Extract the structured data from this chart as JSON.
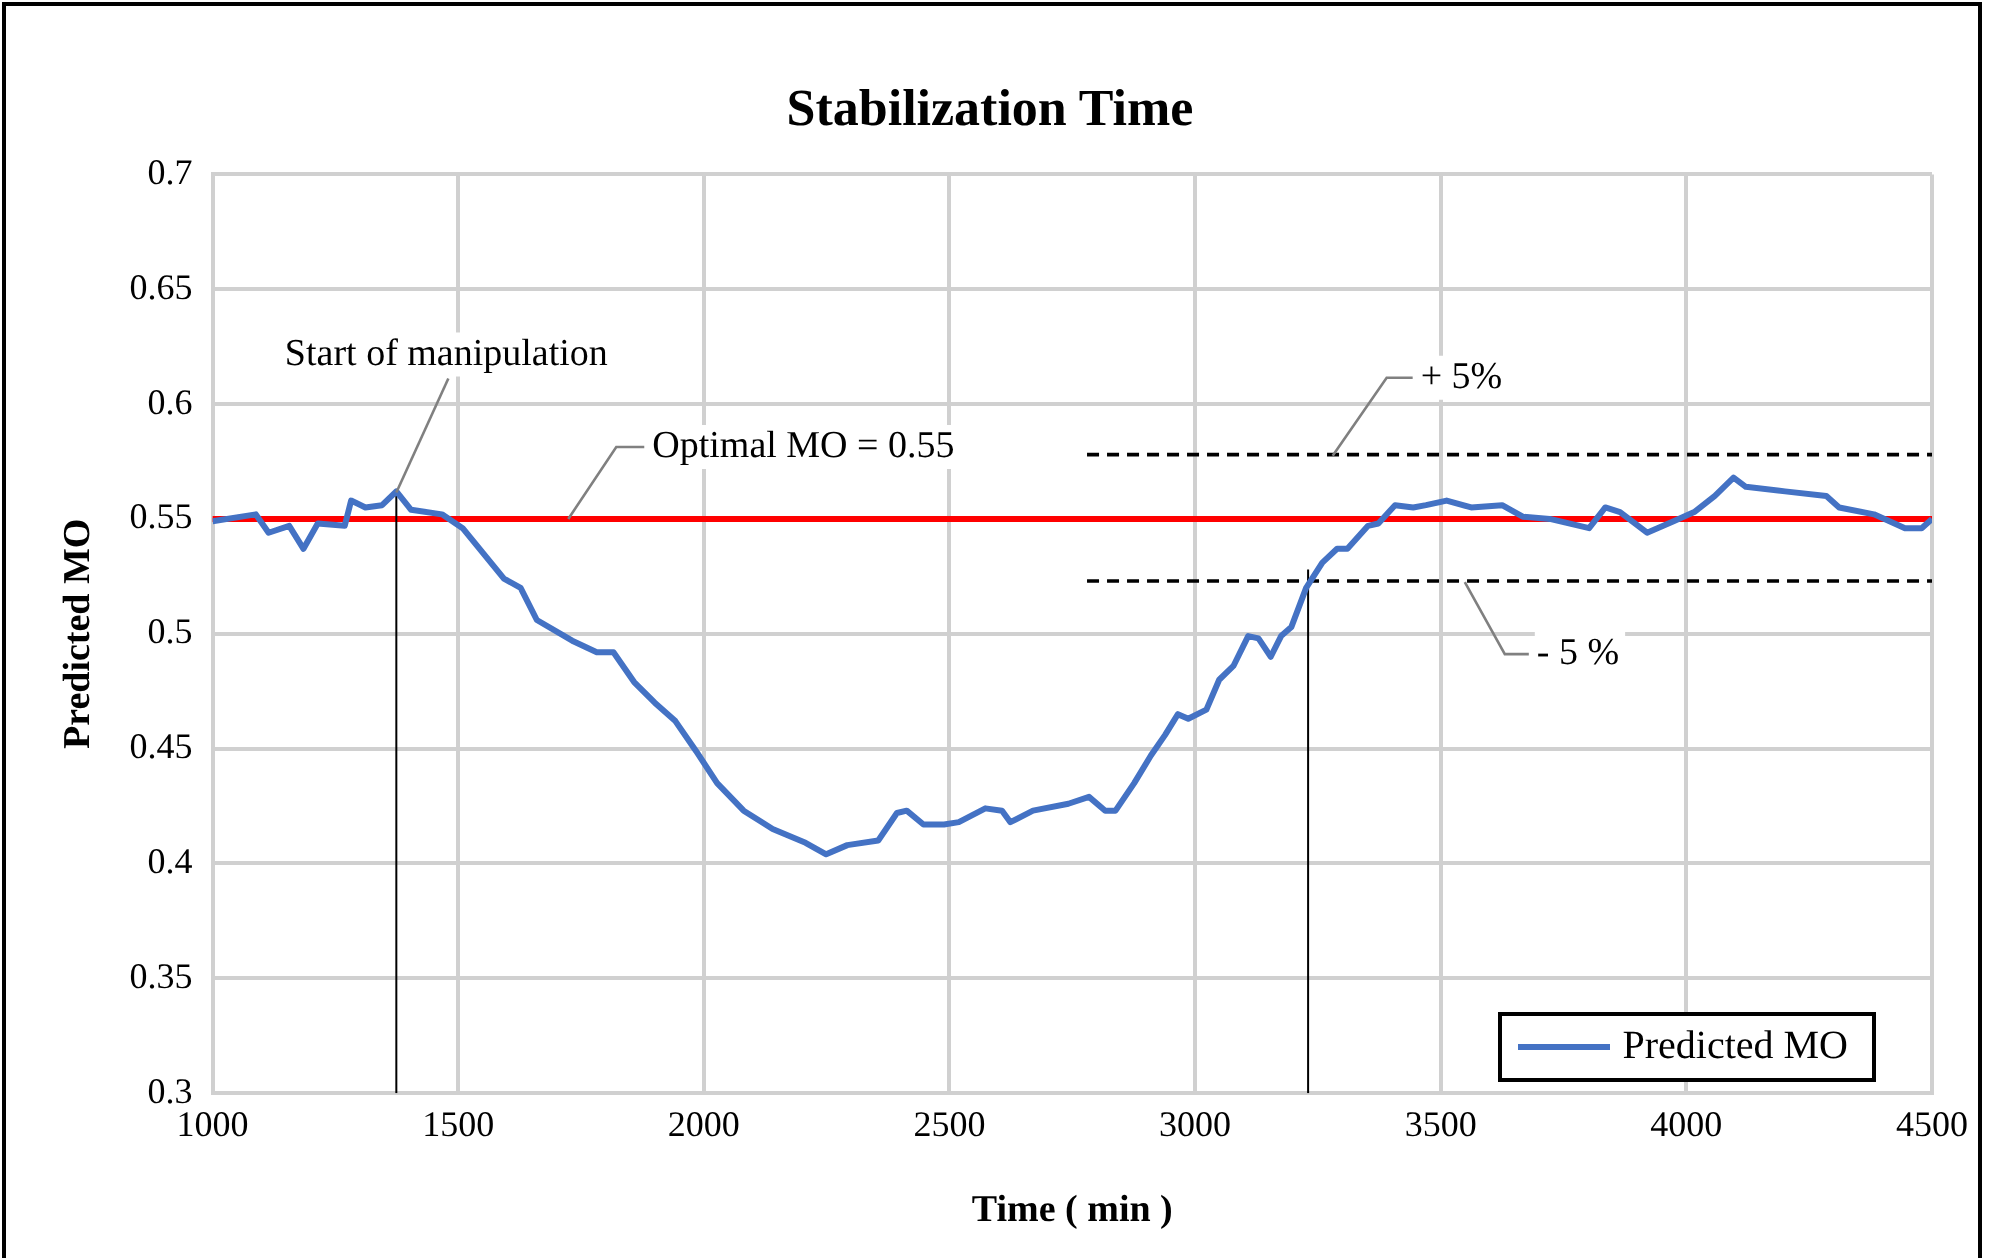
{
  "chart_data": {
    "type": "line",
    "title": "Stabilization Time",
    "xlabel": "Time ( min )",
    "ylabel": "Predicted MO",
    "xlim": [
      1000,
      4500
    ],
    "xticks": [
      1000,
      1500,
      2000,
      2500,
      3000,
      3500,
      4000,
      4500
    ],
    "ylim": [
      0.3,
      0.7
    ],
    "yticks": [
      0.3,
      0.35,
      0.4,
      0.45,
      0.5,
      0.55,
      0.6,
      0.65,
      0.7
    ],
    "grid": true,
    "legend": "bottom right",
    "marker": "none",
    "series": [
      {
        "name": "Predicted MO",
        "type": "line",
        "color": "#4472c4",
        "line_style": "solid",
        "x": [
          1000,
          1088,
          1114,
          1156,
          1185,
          1214,
          1269,
          1282,
          1311,
          1345,
          1374,
          1404,
          1467,
          1509,
          1593,
          1627,
          1660,
          1732,
          1782,
          1816,
          1858,
          1900,
          1942,
          1984,
          2027,
          2081,
          2140,
          2207,
          2249,
          2292,
          2355,
          2393,
          2413,
          2447,
          2489,
          2519,
          2573,
          2607,
          2624,
          2670,
          2742,
          2784,
          2817,
          2838,
          2876,
          2910,
          2939,
          2965,
          2986,
          3023,
          3049,
          3078,
          3108,
          3129,
          3154,
          3175,
          3196,
          3226,
          3259,
          3289,
          3310,
          3352,
          3373,
          3407,
          3444,
          3470,
          3512,
          3562,
          3625,
          3667,
          3722,
          3802,
          3835,
          3865,
          3920,
          3974,
          4016,
          4058,
          4096,
          4121,
          4201,
          4285,
          4311,
          4382,
          4445,
          4479,
          4500
        ],
        "values": [
          0.549,
          0.552,
          0.544,
          0.547,
          0.537,
          0.548,
          0.547,
          0.558,
          0.555,
          0.556,
          0.562,
          0.554,
          0.552,
          0.546,
          0.524,
          0.52,
          0.506,
          0.497,
          0.492,
          0.492,
          0.479,
          0.47,
          0.462,
          0.449,
          0.435,
          0.423,
          0.415,
          0.409,
          0.404,
          0.408,
          0.41,
          0.422,
          0.423,
          0.417,
          0.417,
          0.418,
          0.424,
          0.423,
          0.418,
          0.423,
          0.426,
          0.429,
          0.423,
          0.423,
          0.435,
          0.447,
          0.456,
          0.465,
          0.463,
          0.467,
          0.48,
          0.486,
          0.499,
          0.498,
          0.49,
          0.499,
          0.503,
          0.52,
          0.531,
          0.537,
          0.537,
          0.547,
          0.548,
          0.556,
          0.555,
          0.556,
          0.558,
          0.555,
          0.556,
          0.551,
          0.55,
          0.546,
          0.555,
          0.553,
          0.544,
          0.549,
          0.553,
          0.56,
          0.568,
          0.564,
          0.562,
          0.56,
          0.555,
          0.552,
          0.546,
          0.546,
          0.55
        ]
      },
      {
        "type": "line",
        "color": "#000000",
        "line_style": "dashed",
        "x": [
          2780,
          4500
        ],
        "values": [
          0.578,
          0.578
        ]
      },
      {
        "type": "line",
        "color": "#000000",
        "line_style": "dashed",
        "x": [
          2780,
          4500
        ],
        "values": [
          0.523,
          0.523
        ]
      },
      {
        "type": "line",
        "color": "#000000",
        "line_style": "solid",
        "x": [
          1374,
          1374
        ],
        "values": [
          0.3,
          0.562
        ]
      },
      {
        "type": "line",
        "color": "#000000",
        "line_style": "solid",
        "x": [
          3230,
          3230
        ],
        "values": [
          0.3,
          0.528
        ]
      }
    ],
    "ref_lines": [
      {
        "axis": "y",
        "value": 0.55,
        "color": "#ff0000"
      }
    ],
    "annotations": [
      {
        "text": "Start of manipulation",
        "x": 1374,
        "y": 0.5615
      },
      {
        "text": "Optimal MO = 0.55",
        "x": 1724,
        "y": 0.55
      },
      {
        "text": "+ 5%",
        "x": 3280,
        "y": 0.5775
      },
      {
        "text": "- 5 %",
        "x": 3549,
        "y": 0.5225
      }
    ]
  }
}
